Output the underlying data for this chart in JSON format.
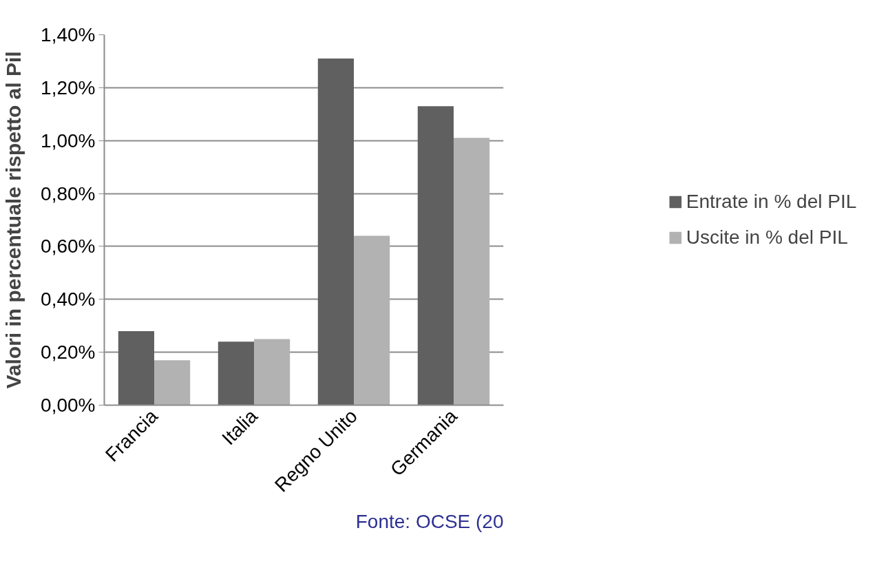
{
  "chart_data": {
    "type": "bar",
    "ylabel": "Valori in percentuale rispetto al Pil",
    "categories": [
      "Francia",
      "Italia",
      "Regno Unito",
      "Germania"
    ],
    "series": [
      {
        "name": "Entrate in % del PIL",
        "color": "#606060",
        "values": [
          0.28,
          0.24,
          1.31,
          1.13
        ]
      },
      {
        "name": "Uscite in % del PIL",
        "color": "#b2b2b2",
        "values": [
          0.17,
          0.25,
          0.64,
          1.01
        ]
      }
    ],
    "ylim": [
      0,
      1.4
    ],
    "yticks": [
      {
        "value": 0,
        "label": "0,00%"
      },
      {
        "value": 0.2,
        "label": "0,20%"
      },
      {
        "value": 0.4,
        "label": "0,40%"
      },
      {
        "value": 0.6,
        "label": "0,60%"
      },
      {
        "value": 0.8,
        "label": "0,80%"
      },
      {
        "value": 1.0,
        "label": "1,00%"
      },
      {
        "value": 1.2,
        "label": "1,20%"
      },
      {
        "value": 1.4,
        "label": "1,40%"
      }
    ],
    "grid": "y",
    "legend": "right",
    "annotations": [
      "Fonte: OCSE (20"
    ]
  }
}
